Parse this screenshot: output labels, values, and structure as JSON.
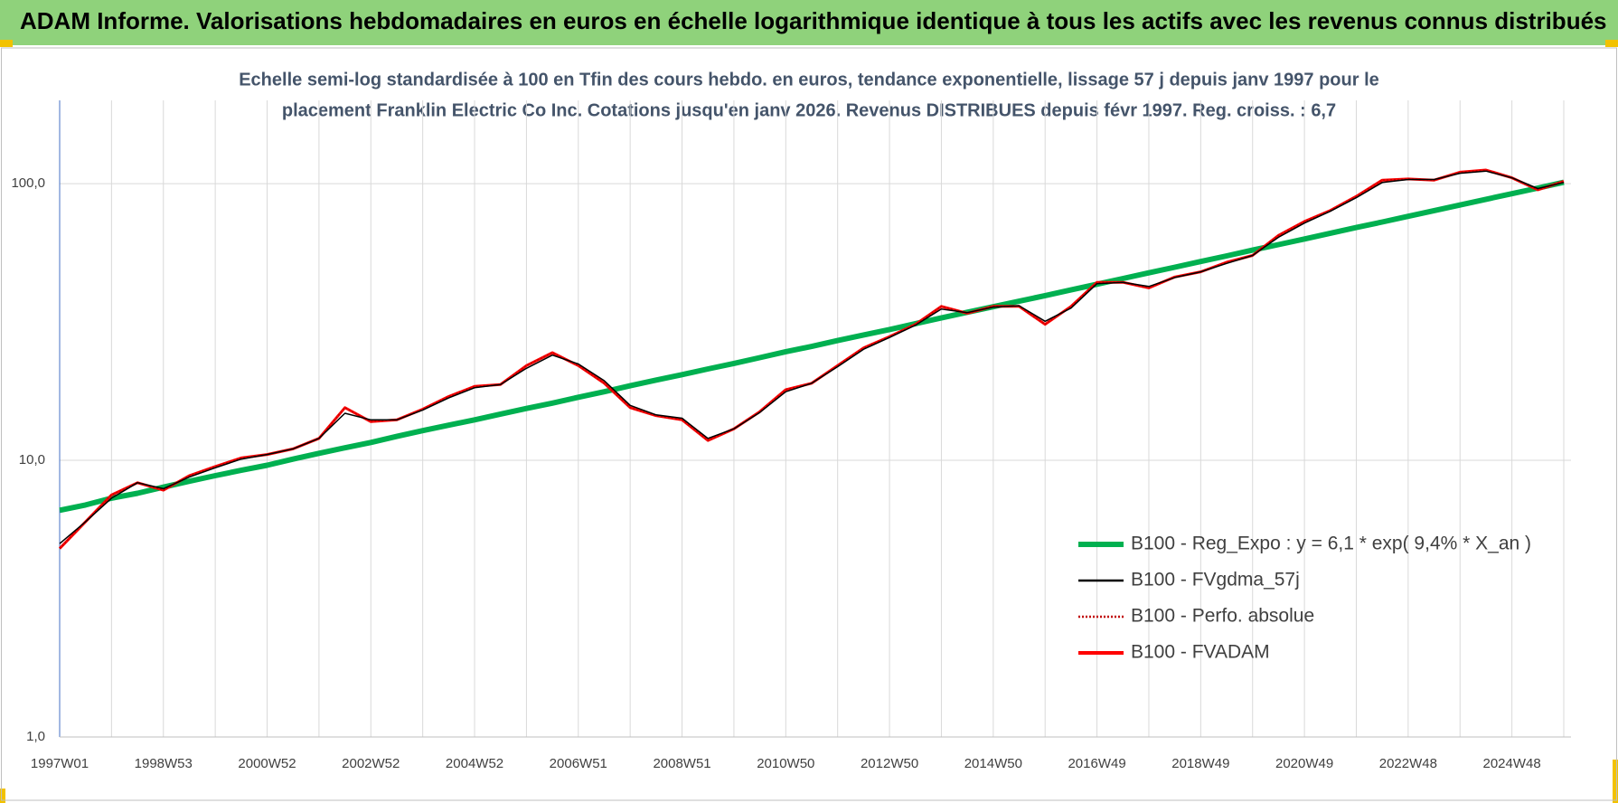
{
  "header": {
    "title": "ADAM Informe. Valorisations hebdomadaires en euros en échelle logarithmique identique à tous les actifs avec les revenus connus distribués"
  },
  "chart_data": {
    "type": "line",
    "subtitle": [
      "Echelle semi-log standardisée à 100 en Tfin des cours hebdo. en euros, tendance exponentielle, lissage 57 j depuis janv 1997 pour le",
      "placement Franklin Electric Co Inc. Cotations jusqu'en janv 2026. Revenus DISTRIBUES depuis févr 1997. Reg. croiss. : 6,7"
    ],
    "log_scale": true,
    "grid": true,
    "legend": "lower right",
    "ylim": [
      1,
      200
    ],
    "yticks": [
      {
        "value": 1,
        "label": "1,0"
      },
      {
        "value": 10,
        "label": "10,0"
      },
      {
        "value": 100,
        "label": "100,0"
      }
    ],
    "categories": [
      "1997W01",
      null,
      null,
      null,
      "1998W53",
      null,
      null,
      null,
      "2000W52",
      null,
      null,
      null,
      "2002W52",
      null,
      null,
      null,
      "2004W52",
      null,
      null,
      null,
      "2006W51",
      null,
      null,
      null,
      "2008W51",
      null,
      null,
      null,
      "2010W50",
      null,
      null,
      null,
      "2012W50",
      null,
      null,
      null,
      "2014W50",
      null,
      null,
      null,
      "2016W49",
      null,
      null,
      null,
      "2018W49",
      null,
      null,
      null,
      "2020W49",
      null,
      null,
      null,
      "2022W48",
      null,
      null,
      null,
      "2024W48",
      null,
      null
    ],
    "series": [
      {
        "name": "B100 - Reg_Expo : y = 6,1 * exp( 9,4% *  X_an )",
        "color": "#00b050",
        "line_style": "solid",
        "values": [
          6.6,
          6.9,
          7.3,
          7.6,
          8.0,
          8.4,
          8.8,
          9.2,
          9.6,
          10.1,
          10.6,
          11.1,
          11.6,
          12.2,
          12.8,
          13.4,
          14.0,
          14.7,
          15.4,
          16.1,
          16.9,
          17.7,
          18.6,
          19.5,
          20.4,
          21.4,
          22.4,
          23.5,
          24.7,
          25.8,
          27.1,
          28.4,
          29.7,
          31.2,
          32.7,
          34.3,
          35.9,
          37.6,
          39.4,
          41.3,
          43.3,
          45.4,
          47.6,
          49.9,
          52.3,
          54.8,
          57.5,
          60.2,
          63.1,
          66.2,
          69.4,
          72.7,
          76.2,
          79.9,
          83.7,
          87.8,
          92.0,
          96.4,
          101.1
        ]
      },
      {
        "name": "B100 - FVgdma_57j",
        "color": "#000000",
        "line_style": "solid",
        "values": [
          5.0,
          6.0,
          7.3,
          8.3,
          7.9,
          8.7,
          9.4,
          10.1,
          10.5,
          11.0,
          12.0,
          14.8,
          14.0,
          14.0,
          15.2,
          16.8,
          18.3,
          18.8,
          21.5,
          24.0,
          22.3,
          19.4,
          15.8,
          14.6,
          14.2,
          12.0,
          13.0,
          14.9,
          17.7,
          19.0,
          21.8,
          25.2,
          27.8,
          30.8,
          35.2,
          34.2,
          35.8,
          36.2,
          31.8,
          35.5,
          43.5,
          44.0,
          42.5,
          45.8,
          48.0,
          51.5,
          55.0,
          64.0,
          72.0,
          79.5,
          89.0,
          101.0,
          103.5,
          103.5,
          109.0,
          111.0,
          105.0,
          96.0,
          101.0
        ]
      },
      {
        "name": "B100 - Perfo. absolue",
        "color": "#c00000",
        "line_style": "dotted",
        "values": [
          4.8,
          6.0,
          7.5,
          8.3,
          7.8,
          8.8,
          9.5,
          10.2,
          10.5,
          11.0,
          12.0,
          15.5,
          13.8,
          14.0,
          15.3,
          17.0,
          18.5,
          18.8,
          22.0,
          24.5,
          22.0,
          19.0,
          15.5,
          14.5,
          14.0,
          11.8,
          13.0,
          15.0,
          18.0,
          19.0,
          22.0,
          25.5,
          28.0,
          31.0,
          36.0,
          34.0,
          36.0,
          36.0,
          31.0,
          36.0,
          44.0,
          44.0,
          42.0,
          46.0,
          48.0,
          52.0,
          55.0,
          65.0,
          73.0,
          80.0,
          90.0,
          103.0,
          104.0,
          103.0,
          110.0,
          112.0,
          105.0,
          95.0,
          102.0
        ]
      },
      {
        "name": "B100 - FVADAM",
        "color": "#ff0000",
        "line_style": "solid",
        "values": [
          4.8,
          6.0,
          7.5,
          8.3,
          7.8,
          8.8,
          9.5,
          10.2,
          10.5,
          11.0,
          12.0,
          15.5,
          13.8,
          14.0,
          15.3,
          17.0,
          18.5,
          18.8,
          22.0,
          24.5,
          22.0,
          19.0,
          15.5,
          14.5,
          14.0,
          11.8,
          13.0,
          15.0,
          18.0,
          19.0,
          22.0,
          25.5,
          28.0,
          31.0,
          36.0,
          34.0,
          36.0,
          36.0,
          31.0,
          36.0,
          44.0,
          44.0,
          42.0,
          46.0,
          48.0,
          52.0,
          55.0,
          65.0,
          73.0,
          80.0,
          90.0,
          103.0,
          104.0,
          103.0,
          110.0,
          112.0,
          105.0,
          95.0,
          102.0
        ]
      }
    ]
  }
}
